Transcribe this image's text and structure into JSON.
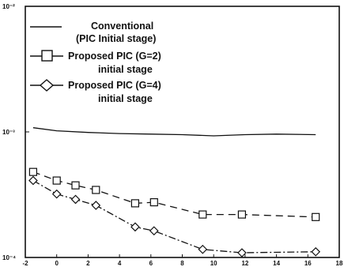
{
  "chart_data": {
    "type": "line",
    "title": "",
    "xlabel": "",
    "ylabel": "",
    "xlim": [
      -2,
      18
    ],
    "ylim": [
      0.0001,
      0.01
    ],
    "y_scale": "log",
    "grid": false,
    "legend_position": "top-left",
    "x_ticks": [
      {
        "value": -2,
        "label": "-2"
      },
      {
        "value": 0,
        "label": "0"
      },
      {
        "value": 2,
        "label": "2"
      },
      {
        "value": 4,
        "label": "4"
      },
      {
        "value": 6,
        "label": "6"
      },
      {
        "value": 8,
        "label": "8"
      },
      {
        "value": 10,
        "label": "10"
      },
      {
        "value": 12,
        "label": "12"
      },
      {
        "value": 14,
        "label": "14"
      },
      {
        "value": 16,
        "label": "16"
      },
      {
        "value": 18,
        "label": "18"
      }
    ],
    "y_ticks": [
      {
        "value": 0.01,
        "label": "10⁻²"
      },
      {
        "value": 0.001,
        "label": "10⁻³"
      },
      {
        "value": 0.0001,
        "label": "10⁻⁴"
      }
    ],
    "series": [
      {
        "name": "Conventional",
        "name_line2": "(PIC Initial stage)",
        "marker": "none",
        "dash": "solid",
        "x": [
          -1.5,
          0,
          2,
          4,
          6,
          8,
          10,
          12,
          14,
          16.5
        ],
        "y": [
          0.00108,
          0.00102,
          0.00099,
          0.00097,
          0.00096,
          0.00095,
          0.00093,
          0.00095,
          0.00096,
          0.00095
        ]
      },
      {
        "name": "Proposed PIC (G=2)",
        "name_line2": "initial stage",
        "marker": "square",
        "dash": "dashed",
        "x": [
          -1.5,
          0,
          1.2,
          2.5,
          5,
          6.2,
          9.3,
          11.8,
          16.5
        ],
        "y": [
          0.00048,
          0.00041,
          0.000375,
          0.000345,
          0.00027,
          0.000275,
          0.00022,
          0.00022,
          0.00021
        ]
      },
      {
        "name": "Proposed PIC (G=4)",
        "name_line2": "initial stage",
        "marker": "diamond",
        "dash": "dashdot",
        "x": [
          -1.5,
          0,
          1.2,
          2.5,
          5,
          6.2,
          9.3,
          11.8,
          16.5
        ],
        "y": [
          0.00041,
          0.00032,
          0.00029,
          0.00026,
          0.000175,
          0.000163,
          0.000116,
          0.000109,
          0.000111
        ]
      }
    ]
  }
}
